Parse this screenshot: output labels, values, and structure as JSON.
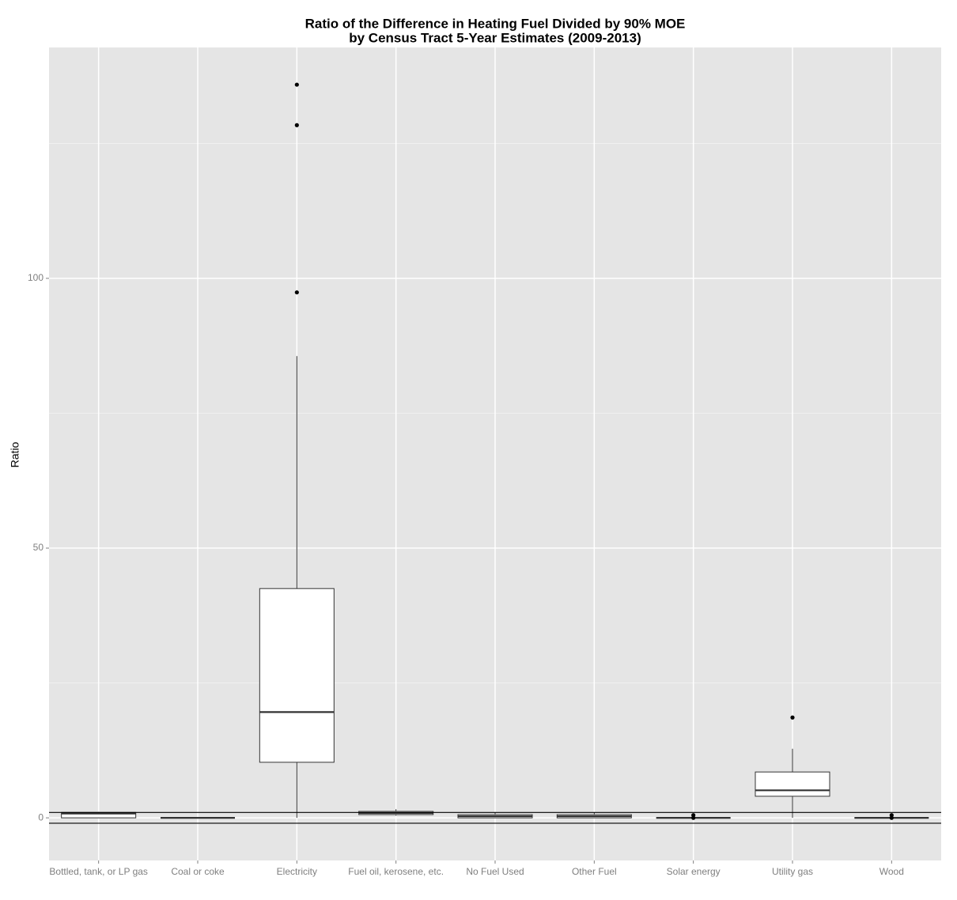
{
  "chart_data": {
    "type": "box",
    "title": [
      "Ratio of the Difference in Heating Fuel Divided by 90% MOE",
      "by Census Tract 5-Year Estimates (2009-2013)"
    ],
    "y_label": "Ratio",
    "categories": [
      "Bottled, tank, or LP gas",
      "Coal or coke",
      "Electricity",
      "Fuel oil, kerosene, etc.",
      "No Fuel Used",
      "Other Fuel",
      "Solar energy",
      "Utility gas",
      "Wood"
    ],
    "boxes": [
      {
        "min": 0,
        "q1": 0,
        "median": 0.8,
        "q3": 1,
        "max": 1.1,
        "outliers": []
      },
      {
        "min": 0,
        "q1": 0,
        "median": 0,
        "q3": 0,
        "max": 0,
        "outliers": []
      },
      {
        "min": 0,
        "q1": 10.3,
        "median": 19.6,
        "q3": 42.5,
        "max": 85.6,
        "outliers": [
          97.4,
          128.4,
          135.9
        ]
      },
      {
        "min": 0.4,
        "q1": 0.6,
        "median": 0.9,
        "q3": 1.2,
        "max": 1.6,
        "outliers": []
      },
      {
        "min": 0,
        "q1": 0,
        "median": 0.3,
        "q3": 0.6,
        "max": 1.0,
        "outliers": []
      },
      {
        "min": 0,
        "q1": 0,
        "median": 0.3,
        "q3": 0.6,
        "max": 1.0,
        "outliers": []
      },
      {
        "min": 0,
        "q1": 0,
        "median": 0,
        "q3": 0,
        "max": 0,
        "outliers": [
          0.5,
          0
        ]
      },
      {
        "min": 0,
        "q1": 4.0,
        "median": 5.1,
        "q3": 8.5,
        "max": 12.8,
        "outliers": [
          18.6
        ]
      },
      {
        "min": 0,
        "q1": 0,
        "median": 0,
        "q3": 0,
        "max": 0,
        "outliers": [
          0.5,
          0
        ]
      }
    ],
    "box_fill": "#ffffff",
    "hlines": [
      1,
      -1
    ],
    "ylim": [
      -7.9,
      142.8
    ],
    "yticks": [
      0,
      50,
      100
    ],
    "minor_yticks": [
      25,
      75,
      125
    ],
    "grid": true
  }
}
